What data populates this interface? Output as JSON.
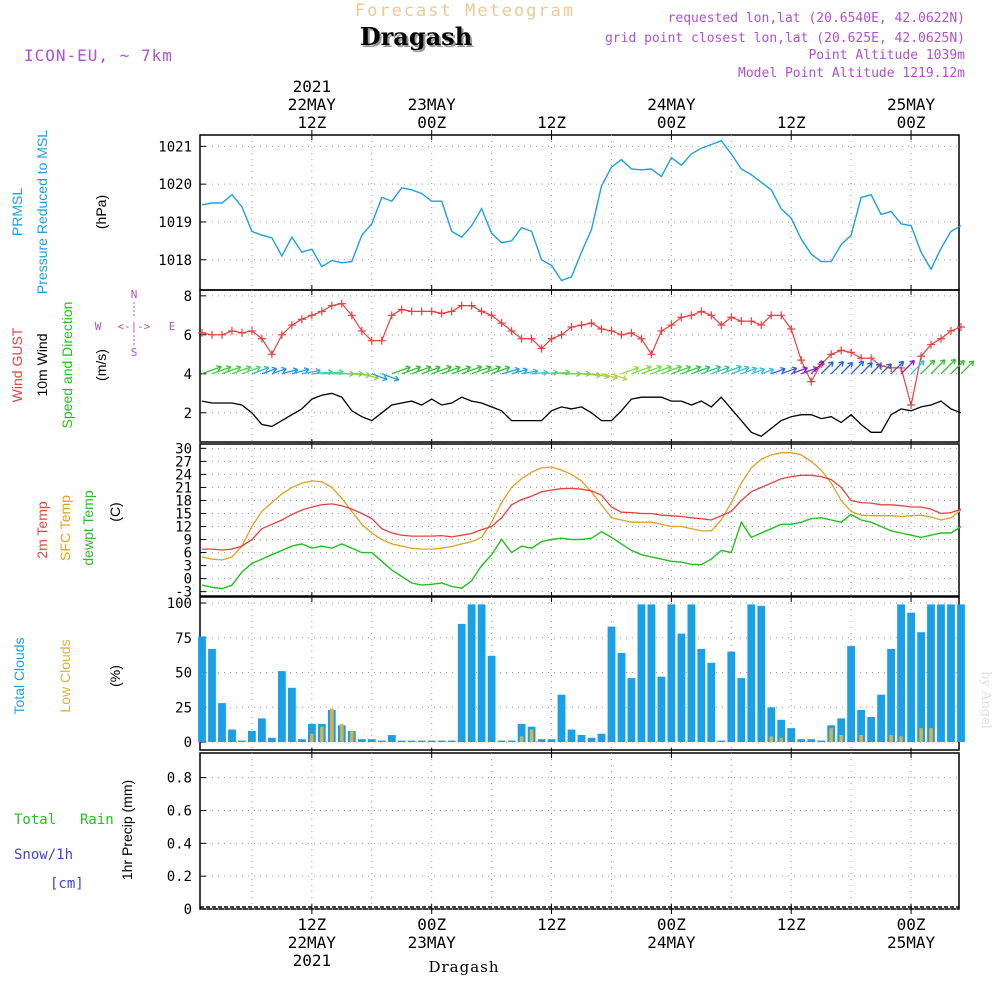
{
  "header": {
    "app_title": "Forecast Meteogram",
    "location": "Dragash",
    "model": "ICON-EU, ~ 7km",
    "requested": "requested lon,lat (20.6540E, 42.0622N)",
    "grid_point": "grid point closest lon,lat (20.625E, 42.0625N)",
    "point_altitude": "Point Altitude 1039m",
    "model_altitude": "Model Point Altitude 1219.12m"
  },
  "footer": {
    "location": "Dragash",
    "watermark": "by Angel"
  },
  "time_axis": {
    "ticks": [
      {
        "h": 12,
        "top": [
          "2021",
          "22MAY",
          "12Z"
        ],
        "bottom": [
          "12Z",
          "22MAY",
          "2021"
        ]
      },
      {
        "h": 24,
        "top": [
          "23MAY",
          "00Z"
        ],
        "bottom": [
          "00Z",
          "23MAY"
        ]
      },
      {
        "h": 36,
        "top": [
          "12Z"
        ],
        "bottom": [
          "12Z"
        ]
      },
      {
        "h": 48,
        "top": [
          "24MAY",
          "00Z"
        ],
        "bottom": [
          "00Z",
          "24MAY"
        ]
      },
      {
        "h": 60,
        "top": [
          "12Z"
        ],
        "bottom": [
          "12Z"
        ]
      },
      {
        "h": 72,
        "top": [
          "25MAY",
          "00Z"
        ],
        "bottom": [
          "00Z",
          "25MAY"
        ]
      }
    ],
    "range_hours": [
      1,
      77
    ]
  },
  "panels": {
    "pressure": {
      "labels": [
        "PRMSL",
        "Pressure Reduced to MSL"
      ],
      "unit": "(hPa)",
      "ticks": [
        1018,
        1019,
        1020,
        1021
      ]
    },
    "wind": {
      "labels": [
        "Wind GUST",
        "10m Wind",
        "Speed and Direction"
      ],
      "unit": "(m/s)",
      "ticks": [
        2,
        4,
        6,
        8
      ],
      "compass": {
        "n": "N",
        "s": "S",
        "w": "W",
        "e": "E",
        "arrows": "<-|->"
      }
    },
    "temp": {
      "labels": [
        "2m Temp",
        "SFC Temp",
        "dewpt Temp"
      ],
      "unit": "(C)",
      "ticks": [
        -3,
        0,
        3,
        6,
        9,
        12,
        15,
        18,
        21,
        24,
        27,
        30
      ]
    },
    "clouds": {
      "labels": [
        "Total Clouds",
        "Low Clouds"
      ],
      "unit": "(%)",
      "ticks": [
        0,
        25,
        50,
        75,
        100
      ]
    },
    "precip": {
      "labels": [
        "Total",
        "Rain",
        "Snow/1h",
        "[cm]"
      ],
      "unit": "1hr Precip (mm)",
      "ticks": [
        0,
        0.2,
        0.4,
        0.6,
        0.8
      ]
    }
  },
  "colors": {
    "pressure": "#1aa0e6",
    "gust": "#e84040",
    "wind": "#000000",
    "t2m": "#e84040",
    "tsfc": "#e0a020",
    "dewpt": "#20c020",
    "total_clouds": "#1aa0e6",
    "low_clouds": "#e0b040",
    "title": "#f0c890",
    "purple": "#b050d0",
    "green": "#20c020",
    "blue": "#4040e0"
  },
  "chart_data": [
    {
      "type": "line",
      "title": "PRMSL",
      "ylabel": "(hPa)",
      "ylim": [
        1017.2,
        1021.3
      ],
      "series": [
        {
          "name": "PRMSL",
          "x_start": 1,
          "x_step": 1,
          "values": [
            1019.45,
            1019.5,
            1019.5,
            1019.72,
            1019.4,
            1018.75,
            1018.65,
            1018.58,
            1018.1,
            1018.6,
            1018.2,
            1018.28,
            1017.82,
            1017.98,
            1017.92,
            1017.95,
            1018.65,
            1018.95,
            1019.65,
            1019.55,
            1019.9,
            1019.85,
            1019.75,
            1019.55,
            1019.55,
            1018.75,
            1018.6,
            1018.9,
            1019.35,
            1018.7,
            1018.45,
            1018.5,
            1018.85,
            1018.75,
            1018.0,
            1017.85,
            1017.45,
            1017.55,
            1018.2,
            1018.8,
            1019.95,
            1020.45,
            1020.65,
            1020.4,
            1020.38,
            1020.4,
            1020.2,
            1020.7,
            1020.5,
            1020.8,
            1020.95,
            1021.05,
            1021.15,
            1020.8,
            1020.4,
            1020.25,
            1020.05,
            1019.85,
            1019.35,
            1019.1,
            1018.55,
            1018.15,
            1017.95,
            1017.95,
            1018.4,
            1018.65,
            1019.65,
            1019.72,
            1019.2,
            1019.28,
            1018.95,
            1018.9,
            1018.2,
            1017.75,
            1018.3,
            1018.75,
            1018.9
          ]
        }
      ]
    },
    {
      "type": "line",
      "title": "Wind",
      "ylabel": "(m/s)",
      "ylim": [
        0.5,
        8.3
      ],
      "series": [
        {
          "name": "Wind GUST",
          "x_start": 1,
          "x_step": 1,
          "values": [
            6.1,
            6.0,
            6.0,
            6.2,
            6.1,
            6.2,
            5.8,
            5.0,
            6.0,
            6.5,
            6.8,
            7.0,
            7.2,
            7.5,
            7.6,
            7.0,
            6.2,
            5.7,
            5.7,
            7.0,
            7.3,
            7.2,
            7.2,
            7.2,
            7.1,
            7.2,
            7.5,
            7.5,
            7.2,
            7.0,
            6.6,
            6.2,
            5.8,
            5.8,
            5.3,
            5.8,
            6.0,
            6.4,
            6.5,
            6.6,
            6.3,
            6.2,
            6.0,
            6.1,
            5.8,
            5.0,
            6.2,
            6.5,
            6.9,
            7.0,
            7.2,
            7.0,
            6.5,
            6.9,
            6.7,
            6.7,
            6.5,
            7.0,
            7.0,
            6.3,
            4.7,
            3.6,
            4.5,
            5.0,
            5.2,
            5.1,
            4.8,
            4.8,
            4.4,
            4.3,
            4.3,
            2.4,
            4.9,
            5.5,
            5.8,
            6.2,
            6.4
          ]
        },
        {
          "name": "10m Wind",
          "x_start": 1,
          "x_step": 1,
          "values": [
            2.6,
            2.5,
            2.5,
            2.5,
            2.4,
            2.0,
            1.4,
            1.3,
            1.6,
            1.9,
            2.2,
            2.7,
            2.9,
            3.0,
            2.8,
            2.1,
            1.8,
            1.6,
            2.0,
            2.4,
            2.5,
            2.6,
            2.4,
            2.7,
            2.4,
            2.5,
            2.8,
            2.6,
            2.5,
            2.3,
            2.1,
            1.6,
            1.6,
            1.6,
            1.6,
            2.1,
            2.3,
            2.2,
            2.3,
            2.0,
            1.6,
            1.6,
            2.1,
            2.7,
            2.8,
            2.8,
            2.8,
            2.6,
            2.6,
            2.4,
            2.6,
            2.3,
            2.8,
            2.2,
            1.6,
            1.0,
            0.8,
            1.2,
            1.6,
            1.8,
            1.9,
            1.9,
            1.7,
            1.8,
            1.5,
            1.9,
            1.4,
            1.0,
            1.0,
            1.9,
            2.2,
            2.1,
            2.3,
            2.4,
            2.6,
            2.2,
            2.0
          ]
        }
      ]
    },
    {
      "type": "line",
      "title": "Temperature",
      "ylabel": "(C)",
      "ylim": [
        -4,
        31
      ],
      "series": [
        {
          "name": "2m Temp",
          "x_start": 1,
          "x_step": 1,
          "values": [
            6.8,
            6.8,
            6.6,
            6.8,
            7.5,
            9.0,
            11.5,
            12.5,
            13.5,
            14.8,
            15.8,
            16.5,
            17.0,
            17.2,
            16.8,
            16.0,
            15.0,
            13.8,
            11.5,
            10.5,
            10.0,
            9.8,
            9.8,
            9.8,
            9.9,
            9.6,
            10.0,
            10.4,
            11.3,
            12.0,
            14.0,
            17.0,
            18.2,
            19.0,
            20.0,
            20.4,
            20.7,
            20.8,
            20.6,
            20.2,
            19.2,
            16.5,
            15.3,
            15.2,
            15.0,
            15.0,
            14.6,
            14.5,
            14.3,
            14.0,
            13.8,
            13.5,
            14.5,
            15.5,
            18.0,
            20.0,
            21.0,
            22.0,
            23.0,
            23.5,
            23.8,
            23.8,
            23.5,
            22.8,
            21.0,
            18.0,
            17.5,
            17.4,
            17.0,
            17.0,
            16.8,
            16.5,
            16.5,
            16.0,
            15.0,
            15.2,
            16.0
          ]
        },
        {
          "name": "SFC Temp",
          "x_start": 1,
          "x_step": 1,
          "values": [
            5.0,
            4.5,
            4.3,
            5.0,
            7.5,
            12.0,
            15.5,
            17.5,
            19.5,
            21.0,
            22.0,
            22.5,
            22.3,
            21.0,
            18.5,
            15.5,
            12.5,
            10.5,
            9.0,
            8.0,
            7.5,
            7.0,
            6.8,
            6.8,
            7.0,
            7.4,
            8.0,
            8.5,
            9.5,
            13.0,
            17.5,
            21.0,
            23.0,
            24.5,
            25.5,
            25.7,
            25.0,
            24.0,
            22.5,
            20.0,
            17.0,
            14.0,
            13.5,
            13.0,
            13.0,
            13.0,
            12.5,
            12.0,
            12.0,
            11.5,
            11.0,
            11.0,
            13.5,
            17.5,
            22.0,
            25.5,
            27.5,
            28.5,
            29.0,
            29.0,
            28.5,
            27.0,
            25.0,
            22.0,
            18.0,
            15.5,
            14.6,
            14.5,
            14.5,
            14.5,
            14.3,
            14.5,
            14.6,
            14.2,
            13.5,
            14.0,
            15.8
          ]
        },
        {
          "name": "dewpt Temp",
          "x_start": 1,
          "x_step": 1,
          "values": [
            -1.5,
            -2.0,
            -2.3,
            -1.5,
            1.5,
            3.5,
            4.5,
            5.5,
            6.5,
            7.5,
            8.0,
            7.0,
            7.5,
            7.0,
            8.0,
            7.0,
            6.0,
            6.0,
            4.0,
            2.0,
            0.5,
            -1.0,
            -1.5,
            -1.3,
            -1.0,
            -1.8,
            -2.2,
            -0.5,
            3.0,
            5.5,
            9.0,
            6.0,
            7.5,
            7.0,
            8.5,
            9.0,
            9.3,
            9.0,
            9.0,
            9.3,
            10.8,
            9.5,
            8.0,
            6.5,
            5.5,
            5.0,
            4.5,
            4.0,
            3.8,
            3.3,
            3.2,
            4.5,
            6.5,
            6.0,
            13.0,
            9.5,
            10.5,
            11.5,
            12.5,
            12.5,
            13.0,
            13.8,
            14.0,
            13.5,
            13.0,
            14.8,
            13.5,
            13.0,
            12.0,
            11.0,
            10.5,
            10.0,
            9.5,
            10.0,
            10.5,
            10.5,
            12.0
          ]
        }
      ]
    },
    {
      "type": "bar",
      "title": "Clouds",
      "ylabel": "(%)",
      "ylim": [
        0,
        100
      ],
      "series": [
        {
          "name": "Total Clouds",
          "x_start": 1,
          "x_step": 1,
          "values": [
            76,
            67,
            28,
            9,
            1,
            8,
            17,
            3,
            51,
            39,
            2,
            13,
            13,
            23,
            12,
            8,
            2,
            2,
            1,
            5,
            1,
            1,
            1,
            1,
            1,
            1,
            85,
            99,
            99,
            62,
            1,
            1,
            13,
            11,
            2,
            2,
            34,
            9,
            5,
            3,
            6,
            83,
            64,
            46,
            99,
            99,
            47,
            99,
            78,
            99,
            67,
            57,
            1,
            65,
            46,
            99,
            98,
            25,
            16,
            10,
            2,
            2,
            1,
            12,
            17,
            69,
            23,
            18,
            34,
            67,
            99,
            93,
            79,
            99,
            99,
            99,
            99
          ]
        },
        {
          "name": "Low Clouds",
          "x_start": 1,
          "x_step": 1,
          "values": [
            0,
            0,
            0,
            0,
            0,
            0,
            0,
            0,
            0,
            0,
            0,
            6,
            11,
            24,
            13,
            8,
            0,
            0,
            0,
            0,
            0,
            0,
            0,
            0,
            0,
            0,
            0,
            0,
            0,
            0,
            0,
            0,
            4,
            9,
            0,
            0,
            0,
            0,
            0,
            0,
            0,
            0,
            0,
            0,
            0,
            0,
            0,
            0,
            0,
            0,
            0,
            0,
            0,
            0,
            0,
            0,
            0,
            4,
            3,
            0,
            0,
            0,
            0,
            10,
            5,
            0,
            5,
            0,
            0,
            5,
            4,
            0,
            10,
            10,
            0,
            0,
            0
          ]
        }
      ]
    },
    {
      "type": "bar",
      "title": "1hr Precip",
      "ylabel": "1hr Precip (mm)",
      "ylim": [
        0,
        0.95
      ],
      "series": [
        {
          "name": "Total Rain",
          "x_start": 1,
          "x_step": 1,
          "values": []
        }
      ]
    }
  ],
  "wind_direction": {
    "from_deg": [
      250,
      250,
      250,
      250,
      250,
      250,
      250,
      250,
      255,
      255,
      260,
      265,
      265,
      270,
      270,
      275,
      285,
      290,
      290,
      250,
      250,
      250,
      250,
      250,
      250,
      250,
      250,
      250,
      250,
      250,
      255,
      255,
      260,
      265,
      265,
      265,
      270,
      270,
      275,
      280,
      285,
      290,
      250,
      250,
      250,
      250,
      250,
      250,
      250,
      250,
      250,
      250,
      250,
      250,
      250,
      250,
      250,
      250,
      250,
      250,
      250,
      225,
      225,
      225,
      225,
      225,
      225,
      225,
      225,
      225,
      225,
      225,
      225,
      225,
      225,
      225,
      225
    ],
    "colors": [
      "#30c030",
      "#3ad030",
      "#40d040",
      "#48d850",
      "#4ad860",
      "#30b8d0",
      "#2090e0",
      "#2090e0",
      "#2090e0",
      "#20a0e0",
      "#30b0e0",
      "#40c0c0",
      "#50d090",
      "#60d060",
      "#70d050",
      "#80d040",
      "#90d040",
      "#20a0e0",
      "#20a0e0",
      "#30c030",
      "#30c030",
      "#30c030",
      "#30c030",
      "#30c030",
      "#30c030",
      "#30c030",
      "#30c030",
      "#30c030",
      "#30c030",
      "#30c030",
      "#20a0e0",
      "#20a0e0",
      "#30b0e0",
      "#40c0d0",
      "#50d0a0",
      "#60d070",
      "#70d050",
      "#80d040",
      "#90d040",
      "#a0d040",
      "#b0d040",
      "#c0d040",
      "#90e040",
      "#80e040",
      "#70e040",
      "#60e040",
      "#50d840",
      "#40d040",
      "#30c840",
      "#30c060",
      "#30c080",
      "#30c0a0",
      "#30c0c0",
      "#30c0d0",
      "#30c0e0",
      "#30c0e0",
      "#30c0e0",
      "#3060e0",
      "#3060e0",
      "#8020c0",
      "#8020c0",
      "#8020c0",
      "#2060e0",
      "#2060e0",
      "#2060e0",
      "#2060e0",
      "#2060e0",
      "#2060e0",
      "#2060e0",
      "#2060e0",
      "#8020c0",
      "#30c0d0",
      "#30c030",
      "#30c030",
      "#30c030",
      "#30c030",
      "#30c030"
    ]
  }
}
